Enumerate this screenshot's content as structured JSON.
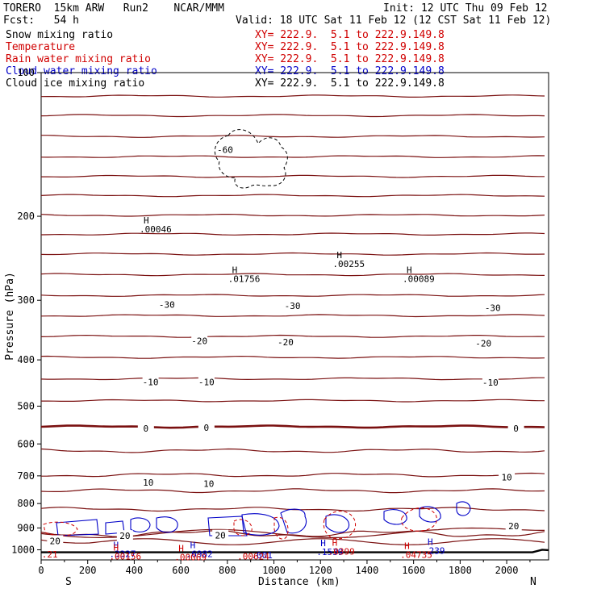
{
  "header": {
    "title": "TORERO  15km ARW   Run2    NCAR/MMM",
    "init": "Init: 12 UTC Thu 09 Feb 12",
    "fcst": "Fcst:   54 h",
    "valid": "Valid: 18 UTC Sat 11 Feb 12 (12 CST Sat 11 Feb 12)"
  },
  "legend": [
    {
      "label": "Snow mixing ratio",
      "xy": "XY= 222.9.  5.1 to 222.9.149.8",
      "label_color": "#000000",
      "xy_color": "#d00000"
    },
    {
      "label": "Temperature",
      "xy": "XY= 222.9.  5.1 to 222.9.149.8",
      "label_color": "#d00000",
      "xy_color": "#d00000"
    },
    {
      "label": "Rain water mixing ratio",
      "xy": "XY= 222.9.  5.1 to 222.9.149.8",
      "label_color": "#d00000",
      "xy_color": "#d00000"
    },
    {
      "label": "Cloud water mixing ratio",
      "xy": "XY= 222.9.  5.1 to 222.9.149.8",
      "label_color": "#0000c8",
      "xy_color": "#0000c8"
    },
    {
      "label": "Cloud ice mixing ratio",
      "xy": "XY= 222.9.  5.1 to 222.9.149.8",
      "label_color": "#000000",
      "xy_color": "#000000"
    }
  ],
  "colors": {
    "temperature": "#7a1010",
    "zero_isotherm": "#7a1010",
    "cloud_water": "#0000c8",
    "rain": "#d00000",
    "snow": "#000000",
    "terrain": "#000000"
  },
  "chart_data": {
    "type": "cross-section contour",
    "xlabel": "Distance (km)",
    "ylabel": "Pressure (hPa)",
    "xlim": [
      0,
      2180
    ],
    "ylim": [
      1050,
      100
    ],
    "y_scale": "log-pressure",
    "x_ticks": [
      0,
      200,
      400,
      600,
      800,
      1000,
      1200,
      1400,
      1600,
      1800,
      2000
    ],
    "y_ticks": [
      100,
      200,
      300,
      400,
      500,
      600,
      700,
      800,
      900,
      1000
    ],
    "y_tick_labels": [
      "100",
      "200",
      "300",
      "400",
      "500",
      "600",
      "700",
      "800",
      "900",
      "1000"
    ],
    "left_end_label": "S",
    "right_end_label": "N",
    "isotherm_pressures": [
      112,
      123,
      136,
      150,
      165,
      181,
      199,
      218,
      240,
      265,
      293,
      323,
      357,
      395,
      438,
      487,
      552,
      620,
      697,
      752,
      822,
      925
    ],
    "zero_isotherm_pressure": 552,
    "temperature_labels": [
      {
        "text": "-60",
        "x": 790,
        "p": 145
      },
      {
        "text": "-30",
        "x": 540,
        "p": 306
      },
      {
        "text": "-30",
        "x": 1080,
        "p": 308
      },
      {
        "text": "-30",
        "x": 1940,
        "p": 311
      },
      {
        "text": "-20",
        "x": 680,
        "p": 365
      },
      {
        "text": "-20",
        "x": 1050,
        "p": 367
      },
      {
        "text": "-20",
        "x": 1900,
        "p": 369
      },
      {
        "text": "-10",
        "x": 470,
        "p": 445
      },
      {
        "text": "-10",
        "x": 710,
        "p": 445
      },
      {
        "text": "-10",
        "x": 1930,
        "p": 446
      },
      {
        "text": "0",
        "x": 450,
        "p": 557
      },
      {
        "text": "0",
        "x": 710,
        "p": 555
      },
      {
        "text": "0",
        "x": 2040,
        "p": 557
      },
      {
        "text": "10",
        "x": 460,
        "p": 722
      },
      {
        "text": "10",
        "x": 720,
        "p": 727
      },
      {
        "text": "10",
        "x": 2000,
        "p": 704
      },
      {
        "text": "20",
        "x": 360,
        "p": 935
      },
      {
        "text": "20",
        "x": 770,
        "p": 933
      },
      {
        "text": "20",
        "x": 2030,
        "p": 891
      },
      {
        "text": "20",
        "x": 60,
        "p": 958
      }
    ],
    "max_labels": [
      {
        "h": "H",
        "value": ".00046",
        "x": 440,
        "p": 207,
        "color": "#000000"
      },
      {
        "h": "H",
        "value": ".01756",
        "x": 820,
        "p": 263,
        "color": "#000000"
      },
      {
        "h": "H",
        "value": ".00255",
        "x": 1270,
        "p": 245,
        "color": "#000000"
      },
      {
        "h": "H",
        "value": ".00089",
        "x": 1570,
        "p": 263,
        "color": "#000000"
      },
      {
        "h": "H",
        "value": ".3327",
        "x": 310,
        "p": 992,
        "color": "#0000c8"
      },
      {
        "h": "H",
        "value": ".6982",
        "x": 640,
        "p": 992,
        "color": "#0000c8"
      },
      {
        "h": "H",
        "value": ".1539",
        "x": 1200,
        "p": 982,
        "color": "#0000c8"
      },
      {
        "h": "H",
        "value": ".239",
        "x": 1660,
        "p": 977,
        "color": "#0000c8"
      },
      {
        "h": "H",
        "value": ".00156",
        "x": 310,
        "p": 1005,
        "color": "#d00000"
      },
      {
        "h": "H",
        "value": ".00069",
        "x": 590,
        "p": 1007,
        "color": "#d00000"
      },
      {
        "h": "H",
        "value": ".0399",
        "x": 1250,
        "p": 981,
        "color": "#d00000"
      },
      {
        "h": "H",
        "value": ".04735",
        "x": 1560,
        "p": 997,
        "color": "#d00000"
      },
      {
        "h": "",
        "value": ".001",
        "x": 920,
        "p": 998,
        "color": "#0000c8"
      },
      {
        "h": "",
        "value": ".00624",
        "x": 860,
        "p": 1004,
        "color": "#d00000"
      },
      {
        "h": "",
        "value": ".21",
        "x": 20,
        "p": 995,
        "color": "#d00000"
      }
    ]
  }
}
